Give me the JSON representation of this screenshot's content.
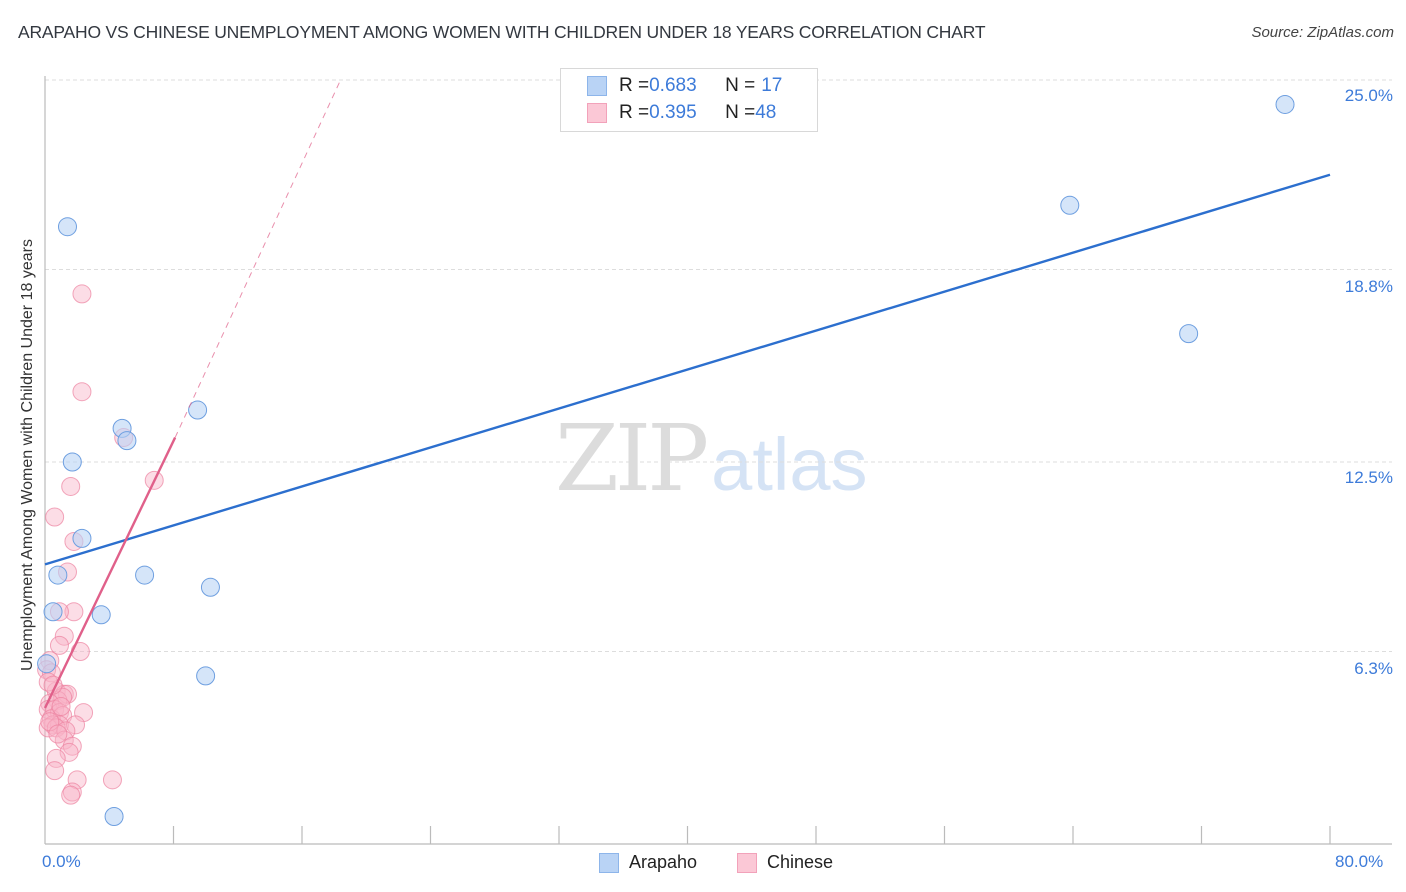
{
  "title": "ARAPAHO VS CHINESE UNEMPLOYMENT AMONG WOMEN WITH CHILDREN UNDER 18 YEARS CORRELATION CHART",
  "source": "Source: ZipAtlas.com",
  "watermark": {
    "zip": "ZIP",
    "atlas": "atlas"
  },
  "legend_top": [
    {
      "series": "Arapaho",
      "r_label": "R = ",
      "r_value": "0.683",
      "n_label": "N = ",
      "n_value": "17",
      "fill": "#b9d3f5",
      "stroke": "#8db5ea"
    },
    {
      "series": "Chinese",
      "r_label": "R = ",
      "r_value": "0.395",
      "n_label": "N = ",
      "n_value": "48",
      "fill": "#fbc8d6",
      "stroke": "#f2a2ba"
    }
  ],
  "legend_bottom": [
    {
      "label": "Arapaho",
      "fill": "#b9d3f5",
      "stroke": "#8db5ea"
    },
    {
      "label": "Chinese",
      "fill": "#fbc8d6",
      "stroke": "#f2a2ba"
    }
  ],
  "y_ticks": [
    "25.0%",
    "18.8%",
    "12.5%",
    "6.3%"
  ],
  "x_ticks": {
    "min": "0.0%",
    "max": "80.0%"
  },
  "colors": {
    "arapaho_line": "#2c6fce",
    "chinese_line": "#e0608a",
    "tick_text": "#3d7bd9",
    "grid": "#dddddd"
  },
  "chart_data": {
    "type": "scatter",
    "title": "ARAPAHO VS CHINESE UNEMPLOYMENT AMONG WOMEN WITH CHILDREN UNDER 18 YEARS CORRELATION CHART",
    "xlabel": "",
    "ylabel": "Unemployment Among Women with Children Under 18 years",
    "xlim": [
      0,
      80
    ],
    "ylim": [
      0,
      25
    ],
    "x_tick_labels": [
      "0.0%",
      "80.0%"
    ],
    "y_tick_values": [
      6.3,
      12.5,
      18.8,
      25.0
    ],
    "y_tick_labels": [
      "6.3%",
      "12.5%",
      "18.8%",
      "25.0%"
    ],
    "grid": {
      "horizontal": true,
      "style": "dashed"
    },
    "legend_position": "top-center and bottom",
    "series": [
      {
        "name": "Arapaho",
        "R": 0.683,
        "N": 17,
        "color": "#8db5ea",
        "points": [
          [
            1.4,
            20.2
          ],
          [
            4.8,
            13.6
          ],
          [
            5.1,
            13.2
          ],
          [
            9.5,
            14.2
          ],
          [
            1.7,
            12.5
          ],
          [
            2.3,
            10.0
          ],
          [
            0.8,
            8.8
          ],
          [
            6.2,
            8.8
          ],
          [
            10.3,
            8.4
          ],
          [
            0.5,
            7.6
          ],
          [
            3.5,
            7.5
          ],
          [
            0.1,
            5.9
          ],
          [
            10.0,
            5.5
          ],
          [
            4.3,
            0.9
          ],
          [
            63.8,
            20.9
          ],
          [
            71.2,
            16.7
          ],
          [
            77.2,
            24.2
          ]
        ],
        "trendline": {
          "x": [
            0,
            80
          ],
          "y": [
            9.15,
            21.9
          ],
          "style": "solid"
        }
      },
      {
        "name": "Chinese",
        "R": 0.395,
        "N": 48,
        "color": "#f2a2ba",
        "points": [
          [
            2.3,
            18.0
          ],
          [
            2.3,
            14.8
          ],
          [
            4.9,
            13.3
          ],
          [
            6.8,
            11.9
          ],
          [
            1.6,
            11.7
          ],
          [
            0.6,
            10.7
          ],
          [
            1.8,
            9.9
          ],
          [
            1.4,
            8.9
          ],
          [
            1.8,
            7.6
          ],
          [
            0.9,
            7.6
          ],
          [
            1.2,
            6.8
          ],
          [
            0.9,
            6.5
          ],
          [
            2.2,
            6.3
          ],
          [
            0.3,
            6.0
          ],
          [
            0.1,
            5.7
          ],
          [
            0.4,
            5.6
          ],
          [
            0.7,
            5.0
          ],
          [
            1.2,
            4.9
          ],
          [
            1.4,
            4.9
          ],
          [
            0.8,
            4.7
          ],
          [
            1.1,
            4.8
          ],
          [
            0.3,
            4.6
          ],
          [
            0.2,
            4.4
          ],
          [
            0.6,
            4.4
          ],
          [
            0.9,
            4.3
          ],
          [
            2.4,
            4.3
          ],
          [
            0.4,
            4.1
          ],
          [
            1.1,
            4.2
          ],
          [
            0.5,
            3.9
          ],
          [
            0.9,
            3.9
          ],
          [
            1.9,
            3.9
          ],
          [
            0.2,
            3.8
          ],
          [
            0.7,
            3.8
          ],
          [
            1.3,
            3.7
          ],
          [
            1.2,
            3.4
          ],
          [
            1.7,
            3.2
          ],
          [
            1.5,
            3.0
          ],
          [
            0.7,
            2.8
          ],
          [
            0.6,
            2.4
          ],
          [
            2.0,
            2.1
          ],
          [
            4.2,
            2.1
          ],
          [
            1.7,
            1.7
          ],
          [
            1.6,
            1.6
          ],
          [
            0.2,
            5.3
          ],
          [
            0.5,
            5.2
          ],
          [
            1.0,
            4.5
          ],
          [
            0.3,
            4.0
          ],
          [
            0.8,
            3.6
          ]
        ],
        "trendline_solid": {
          "x": [
            0,
            8.1
          ],
          "y": [
            4.45,
            13.3
          ],
          "style": "solid"
        },
        "trendline_extension": {
          "x": [
            8.1,
            18.4
          ],
          "y": [
            13.3,
            25.0
          ],
          "style": "dashed"
        }
      }
    ]
  }
}
